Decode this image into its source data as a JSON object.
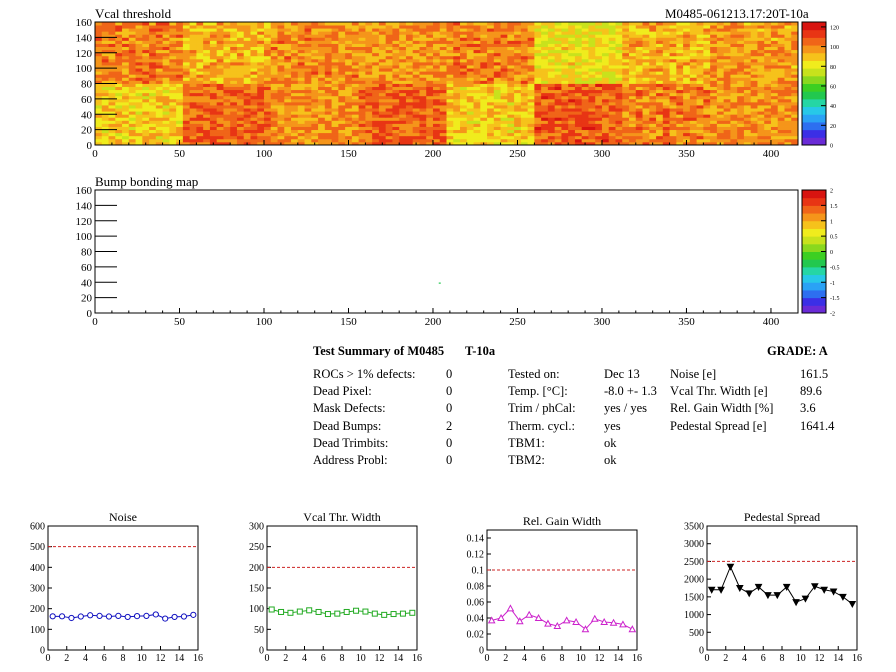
{
  "header": {
    "module_id": "M0485-061213.17:20T-10a"
  },
  "chart_data": [
    {
      "id": "vcal-map",
      "type": "heatmap",
      "title": "Vcal threshold",
      "xlim": [
        0,
        416
      ],
      "ylim": [
        0,
        160
      ],
      "xticks": [
        0,
        50,
        100,
        150,
        200,
        250,
        300,
        350,
        400
      ],
      "yticks": [
        0,
        20,
        40,
        60,
        80,
        100,
        120,
        140,
        160
      ],
      "roc_columns": 8,
      "roc_rows": 2,
      "roc_base_values": [
        [
          101,
          92,
          99,
          97,
          101,
          83,
          92,
          96
        ],
        [
          88,
          105,
          98,
          106,
          88,
          107,
          101,
          98
        ]
      ],
      "palette": [
        "#6a2bd6",
        "#3b2fe6",
        "#2d6ff0",
        "#2aa2f5",
        "#27c8e8",
        "#25d6a5",
        "#22c84f",
        "#3ccf22",
        "#8ad81e",
        "#c8e21c",
        "#f0ec1d",
        "#f6c21b",
        "#f5951a",
        "#f06518",
        "#e83514",
        "#d81410"
      ],
      "zlim": [
        0,
        125
      ],
      "zticks": [
        0,
        20,
        40,
        60,
        80,
        100,
        120
      ]
    },
    {
      "id": "bump-map",
      "type": "heatmap",
      "title": "Bump bonding map",
      "xlim": [
        0,
        416
      ],
      "ylim": [
        0,
        160
      ],
      "xticks": [
        0,
        50,
        100,
        150,
        200,
        250,
        300,
        350,
        400
      ],
      "yticks": [
        0,
        20,
        40,
        60,
        80,
        100,
        120,
        140,
        160
      ],
      "points": [
        [
          204,
          39
        ]
      ],
      "palette": [
        "#6a2bd6",
        "#3b2fe6",
        "#2d6ff0",
        "#2aa2f5",
        "#27c8e8",
        "#25d6a5",
        "#22c84f",
        "#3ccf22",
        "#8ad81e",
        "#c8e21c",
        "#f0ec1d",
        "#f6c21b",
        "#f5951a",
        "#f06518",
        "#e83514",
        "#d81410"
      ],
      "zlim": [
        -2,
        2
      ],
      "zticks": [
        "-2",
        "-1.5",
        "-1",
        "-0.5",
        "0",
        "0.5",
        "1",
        "1.5",
        "2"
      ]
    },
    {
      "id": "noise-plot",
      "type": "line",
      "title": "Noise",
      "x": [
        0,
        1,
        2,
        3,
        4,
        5,
        6,
        7,
        8,
        9,
        10,
        11,
        12,
        13,
        14,
        15
      ],
      "values": [
        163,
        163,
        155,
        162,
        168,
        165,
        162,
        165,
        160,
        164,
        165,
        172,
        152,
        160,
        162,
        170
      ],
      "xlim": [
        0,
        16
      ],
      "ylim": [
        0,
        600
      ],
      "xticks": [
        0,
        2,
        4,
        6,
        8,
        10,
        12,
        14,
        16
      ],
      "yticks": [
        0,
        100,
        200,
        300,
        400,
        500,
        600
      ],
      "threshold": 500,
      "color": "#1010c0",
      "marker": "circle"
    },
    {
      "id": "vcal-width-plot",
      "type": "line",
      "title": "Vcal Thr. Width",
      "x": [
        0,
        1,
        2,
        3,
        4,
        5,
        6,
        7,
        8,
        9,
        10,
        11,
        12,
        13,
        14,
        15
      ],
      "values": [
        98,
        92,
        90,
        93,
        96,
        92,
        87,
        88,
        92,
        95,
        93,
        88,
        85,
        87,
        88,
        90
      ],
      "xlim": [
        0,
        16
      ],
      "ylim": [
        0,
        300
      ],
      "xticks": [
        0,
        2,
        4,
        6,
        8,
        10,
        12,
        14,
        16
      ],
      "yticks": [
        0,
        50,
        100,
        150,
        200,
        250,
        300
      ],
      "threshold": 200,
      "color": "#22aa22",
      "marker": "square"
    },
    {
      "id": "gain-width-plot",
      "type": "line",
      "title": "Rel. Gain Width",
      "x": [
        0,
        1,
        2,
        3,
        4,
        5,
        6,
        7,
        8,
        9,
        10,
        11,
        12,
        13,
        14,
        15
      ],
      "values": [
        0.037,
        0.04,
        0.052,
        0.036,
        0.044,
        0.04,
        0.033,
        0.03,
        0.037,
        0.035,
        0.026,
        0.039,
        0.035,
        0.034,
        0.032,
        0.026
      ],
      "xlim": [
        0,
        16
      ],
      "ylim": [
        0,
        0.15
      ],
      "xticks": [
        0,
        2,
        4,
        6,
        8,
        10,
        12,
        14,
        16
      ],
      "yticks": [
        0,
        0.02,
        0.04,
        0.06,
        0.08,
        0.1,
        0.12,
        0.14
      ],
      "threshold": 0.1,
      "color": "#cc22cc",
      "marker": "triangle"
    },
    {
      "id": "pedestal-plot",
      "type": "line",
      "title": "Pedestal Spread",
      "x": [
        0,
        1,
        2,
        3,
        4,
        5,
        6,
        7,
        8,
        9,
        10,
        11,
        12,
        13,
        14,
        15
      ],
      "values": [
        1700,
        1700,
        2350,
        1750,
        1600,
        1780,
        1550,
        1550,
        1780,
        1350,
        1450,
        1800,
        1700,
        1650,
        1500,
        1300
      ],
      "xlim": [
        0,
        16
      ],
      "ylim": [
        0,
        3500
      ],
      "xticks": [
        0,
        2,
        4,
        6,
        8,
        10,
        12,
        14,
        16
      ],
      "yticks": [
        0,
        500,
        1000,
        1500,
        2000,
        2500,
        3000,
        3500
      ],
      "threshold": 2500,
      "color": "#000000",
      "marker": "triangle-down"
    }
  ],
  "summary": {
    "title": "Test Summary of M0485",
    "temp_label": "T-10a",
    "grade": "GRADE:  A",
    "defects": [
      {
        "label": "ROCs > 1% defects:",
        "value": "0"
      },
      {
        "label": "Dead Pixel:",
        "value": "0"
      },
      {
        "label": "Mask Defects:",
        "value": "0"
      },
      {
        "label": "Dead Bumps:",
        "value": "2"
      },
      {
        "label": "Dead Trimbits:",
        "value": "0"
      },
      {
        "label": "Address Probl:",
        "value": "0"
      }
    ],
    "conditions": [
      {
        "label": "Tested on:",
        "value": "Dec 13"
      },
      {
        "label": "Temp. [°C]:",
        "value": "-8.0 +- 1.3"
      },
      {
        "label": "Trim / phCal:",
        "value": "yes / yes"
      },
      {
        "label": "Therm. cycl.:",
        "value": "yes"
      },
      {
        "label": "TBM1:",
        "value": "ok"
      },
      {
        "label": "TBM2:",
        "value": "ok"
      }
    ],
    "results": [
      {
        "label": "Noise [e]",
        "value": "161.5"
      },
      {
        "label": "Vcal Thr. Width [e]",
        "value": "89.6"
      },
      {
        "label": "Rel. Gain Width [%]",
        "value": "3.6"
      },
      {
        "label": "Pedestal Spread [e]",
        "value": "1641.4"
      }
    ]
  }
}
